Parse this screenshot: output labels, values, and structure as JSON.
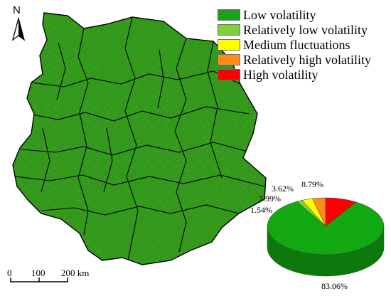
{
  "north_label": "N",
  "legend": [
    {
      "label": "Low volatility",
      "color": "#1aa01a"
    },
    {
      "label": "Relatively low volatility",
      "color": "#7ad13a"
    },
    {
      "label": "Medium fluctuations",
      "color": "#ffff00"
    },
    {
      "label": "Relatively high volatility",
      "color": "#ff8c1a"
    },
    {
      "label": "High volatility",
      "color": "#ff0000"
    }
  ],
  "scale_bar": {
    "ticks": [
      "0",
      "100",
      "200 km"
    ]
  },
  "chart_data": {
    "type": "pie",
    "categories": [
      "Low volatility",
      "Relatively low volatility",
      "Medium fluctuations",
      "Relatively high volatility",
      "High volatility"
    ],
    "values": [
      83.06,
      1.54,
      2.99,
      3.62,
      8.79
    ],
    "labels": [
      "83.06%",
      "1.54%",
      "2.99%",
      "3.62%",
      "8.79%"
    ],
    "colors": [
      "#12a812",
      "#82d23c",
      "#ffff00",
      "#ff8c1a",
      "#ff0000"
    ],
    "style": "3d"
  }
}
